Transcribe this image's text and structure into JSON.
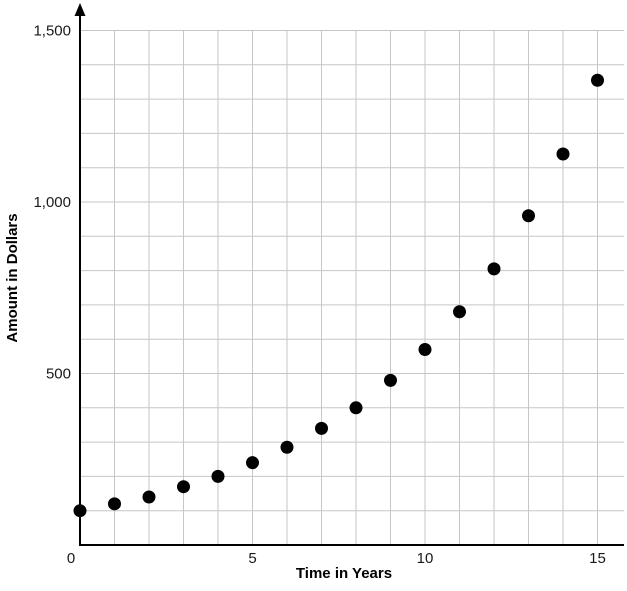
{
  "chart_data": {
    "type": "scatter",
    "x": [
      0,
      1,
      2,
      3,
      4,
      5,
      6,
      7,
      8,
      9,
      10,
      11,
      12,
      13,
      14,
      15
    ],
    "y": [
      100,
      120,
      140,
      170,
      200,
      240,
      285,
      340,
      400,
      480,
      570,
      680,
      805,
      960,
      1140,
      1355
    ],
    "title": "",
    "xlabel": "Time in Years",
    "ylabel": "Amount in Dollars",
    "xlim": [
      0,
      15
    ],
    "ylim": [
      0,
      1500
    ],
    "x_ticks": [
      0,
      5,
      10,
      15
    ],
    "x_tick_labels": [
      "0",
      "5",
      "10",
      "15"
    ],
    "y_ticks": [
      500,
      1000,
      1500
    ],
    "y_tick_labels": [
      "500",
      "1,000",
      "1,500"
    ],
    "x_grid_step": 1,
    "y_grid_step": 100,
    "grid": true,
    "legend": false,
    "point_color": "#000000",
    "grid_color": "#c6c6c6",
    "axis_color": "#000000"
  }
}
